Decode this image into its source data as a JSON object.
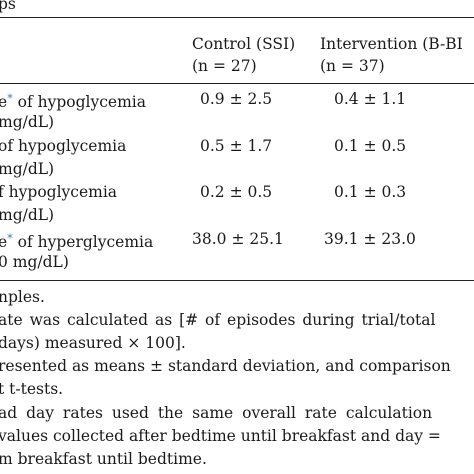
{
  "caption_fragment": "ps",
  "columns": {
    "control": {
      "line1": "Control (SSI)",
      "line2": "(n = 27)"
    },
    "intervention": {
      "line1": "Intervention (B-BI",
      "line2": "(n = 37)"
    }
  },
  "rows": [
    {
      "label_a": "e",
      "asterisk": "*",
      "label_b": " of hypoglycemia",
      "label2": " mg/dL)",
      "control": "0.9 ± 2.5",
      "intervention": "0.4 ± 1.1"
    },
    {
      "label_a": "",
      "asterisk": "",
      "label_b": " of hypoglycemia",
      "label2": " mg/dL)",
      "control": "0.5 ± 1.7",
      "intervention": "0.1 ± 0.5"
    },
    {
      "label_a": "",
      "asterisk": "",
      "label_b": "f hypoglycemia",
      "label2": " mg/dL)",
      "control": "0.2 ± 0.5",
      "intervention": "0.1 ± 0.3"
    },
    {
      "label_a": "e",
      "asterisk": "*",
      "label_b": " of hyperglycemia",
      "label2": "0 mg/dL)",
      "control": "38.0 ± 25.1",
      "intervention": "39.1 ± 23.0"
    }
  ],
  "footnotes": [
    "nples.",
    "ate was calculated as [# of episodes during trial/total",
    "days) measured × 100].",
    "resented as means ± standard deviation, and comparison",
    "t t-tests.",
    "ad day rates used the same overall rate calculation",
    " values collected after bedtime until breakfast and day =",
    "m breakfast until bedtime."
  ]
}
